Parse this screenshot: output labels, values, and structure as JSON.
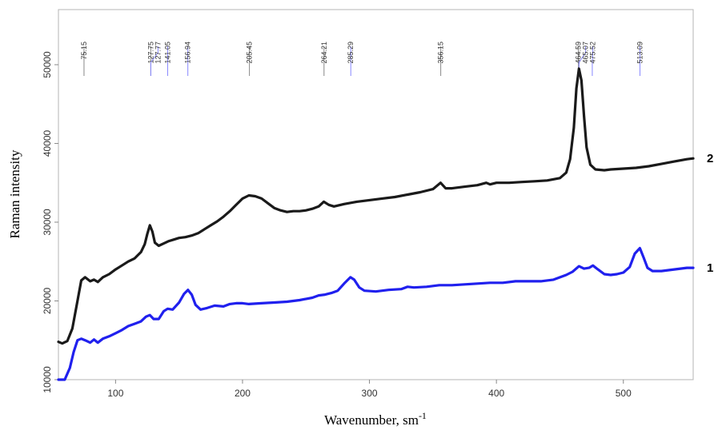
{
  "chart_data": {
    "type": "line",
    "title": "",
    "xlabel": "Wavenumber, sm",
    "xlabel_superscript": "-1",
    "ylabel": "Raman intensity",
    "xlim": [
      55,
      555
    ],
    "ylim": [
      10000,
      57000
    ],
    "xticks": [
      100,
      200,
      300,
      400,
      500
    ],
    "yticks": [
      10000,
      20000,
      30000,
      40000,
      50000
    ],
    "grid": false,
    "peak_annotations": [
      {
        "label": "75.15",
        "x": 75.15,
        "color": "#888888"
      },
      {
        "label": "127.75",
        "x": 127.75,
        "color": "#888888"
      },
      {
        "label": "127.77",
        "x": 127.77,
        "color": "#8888ff"
      },
      {
        "label": "141.05",
        "x": 141.05,
        "color": "#8888ff"
      },
      {
        "label": "156.94",
        "x": 156.94,
        "color": "#8888ff"
      },
      {
        "label": "205.45",
        "x": 205.45,
        "color": "#888888"
      },
      {
        "label": "264.21",
        "x": 264.21,
        "color": "#888888"
      },
      {
        "label": "285.29",
        "x": 285.29,
        "color": "#8888ff"
      },
      {
        "label": "356.15",
        "x": 356.15,
        "color": "#888888"
      },
      {
        "label": "464.59",
        "x": 464.59,
        "color": "#888888"
      },
      {
        "label": "465.07",
        "x": 465.07,
        "color": "#8888ff"
      },
      {
        "label": "475.52",
        "x": 475.52,
        "color": "#8888ff"
      },
      {
        "label": "513.09",
        "x": 513.09,
        "color": "#8888ff"
      }
    ],
    "series": [
      {
        "label": "2",
        "color": "#1a1a1a",
        "points": [
          [
            55,
            14800
          ],
          [
            58,
            14600
          ],
          [
            62,
            14900
          ],
          [
            66,
            16500
          ],
          [
            70,
            20000
          ],
          [
            73,
            22600
          ],
          [
            76,
            23000
          ],
          [
            80,
            22500
          ],
          [
            83,
            22700
          ],
          [
            86,
            22400
          ],
          [
            90,
            23000
          ],
          [
            95,
            23400
          ],
          [
            100,
            24000
          ],
          [
            105,
            24500
          ],
          [
            110,
            25000
          ],
          [
            115,
            25400
          ],
          [
            120,
            26200
          ],
          [
            123,
            27200
          ],
          [
            125,
            28500
          ],
          [
            127,
            29600
          ],
          [
            129,
            28800
          ],
          [
            131,
            27400
          ],
          [
            134,
            27000
          ],
          [
            138,
            27300
          ],
          [
            142,
            27600
          ],
          [
            146,
            27800
          ],
          [
            150,
            28000
          ],
          [
            155,
            28100
          ],
          [
            160,
            28300
          ],
          [
            165,
            28600
          ],
          [
            170,
            29100
          ],
          [
            175,
            29600
          ],
          [
            180,
            30100
          ],
          [
            185,
            30700
          ],
          [
            190,
            31400
          ],
          [
            195,
            32200
          ],
          [
            200,
            33000
          ],
          [
            205,
            33400
          ],
          [
            210,
            33300
          ],
          [
            215,
            33000
          ],
          [
            220,
            32400
          ],
          [
            225,
            31800
          ],
          [
            230,
            31500
          ],
          [
            235,
            31300
          ],
          [
            240,
            31400
          ],
          [
            245,
            31400
          ],
          [
            250,
            31500
          ],
          [
            255,
            31700
          ],
          [
            260,
            32000
          ],
          [
            264,
            32600
          ],
          [
            268,
            32200
          ],
          [
            272,
            32000
          ],
          [
            280,
            32300
          ],
          [
            290,
            32600
          ],
          [
            300,
            32800
          ],
          [
            310,
            33000
          ],
          [
            320,
            33200
          ],
          [
            330,
            33500
          ],
          [
            340,
            33800
          ],
          [
            350,
            34200
          ],
          [
            356,
            35000
          ],
          [
            360,
            34300
          ],
          [
            365,
            34300
          ],
          [
            375,
            34500
          ],
          [
            385,
            34700
          ],
          [
            392,
            35000
          ],
          [
            395,
            34800
          ],
          [
            400,
            35000
          ],
          [
            410,
            35000
          ],
          [
            420,
            35100
          ],
          [
            430,
            35200
          ],
          [
            440,
            35300
          ],
          [
            450,
            35600
          ],
          [
            455,
            36300
          ],
          [
            458,
            38000
          ],
          [
            461,
            42000
          ],
          [
            463,
            47000
          ],
          [
            465,
            49500
          ],
          [
            467,
            48000
          ],
          [
            469,
            43500
          ],
          [
            471,
            39500
          ],
          [
            474,
            37300
          ],
          [
            478,
            36700
          ],
          [
            485,
            36600
          ],
          [
            490,
            36700
          ],
          [
            500,
            36800
          ],
          [
            510,
            36900
          ],
          [
            520,
            37100
          ],
          [
            530,
            37400
          ],
          [
            540,
            37700
          ],
          [
            550,
            38000
          ],
          [
            555,
            38100
          ]
        ]
      },
      {
        "label": "1",
        "color": "#2020ee",
        "points": [
          [
            55,
            10000
          ],
          [
            60,
            10000
          ],
          [
            64,
            11500
          ],
          [
            67,
            13500
          ],
          [
            70,
            15000
          ],
          [
            73,
            15200
          ],
          [
            76,
            15000
          ],
          [
            80,
            14700
          ],
          [
            83,
            15100
          ],
          [
            86,
            14700
          ],
          [
            90,
            15200
          ],
          [
            95,
            15500
          ],
          [
            100,
            15900
          ],
          [
            105,
            16300
          ],
          [
            110,
            16800
          ],
          [
            115,
            17100
          ],
          [
            120,
            17400
          ],
          [
            124,
            18000
          ],
          [
            127,
            18200
          ],
          [
            130,
            17700
          ],
          [
            134,
            17700
          ],
          [
            138,
            18700
          ],
          [
            141,
            19000
          ],
          [
            145,
            18900
          ],
          [
            150,
            19800
          ],
          [
            154,
            20900
          ],
          [
            157,
            21400
          ],
          [
            160,
            20800
          ],
          [
            163,
            19500
          ],
          [
            167,
            18900
          ],
          [
            172,
            19100
          ],
          [
            178,
            19400
          ],
          [
            185,
            19300
          ],
          [
            190,
            19600
          ],
          [
            195,
            19700
          ],
          [
            200,
            19700
          ],
          [
            205,
            19600
          ],
          [
            215,
            19700
          ],
          [
            225,
            19800
          ],
          [
            235,
            19900
          ],
          [
            245,
            20100
          ],
          [
            255,
            20400
          ],
          [
            260,
            20700
          ],
          [
            265,
            20800
          ],
          [
            270,
            21000
          ],
          [
            275,
            21300
          ],
          [
            280,
            22200
          ],
          [
            285,
            23000
          ],
          [
            288,
            22700
          ],
          [
            292,
            21700
          ],
          [
            296,
            21300
          ],
          [
            305,
            21200
          ],
          [
            315,
            21400
          ],
          [
            325,
            21500
          ],
          [
            330,
            21800
          ],
          [
            335,
            21700
          ],
          [
            345,
            21800
          ],
          [
            355,
            22000
          ],
          [
            365,
            22000
          ],
          [
            375,
            22100
          ],
          [
            385,
            22200
          ],
          [
            395,
            22300
          ],
          [
            405,
            22300
          ],
          [
            415,
            22500
          ],
          [
            425,
            22500
          ],
          [
            435,
            22500
          ],
          [
            445,
            22700
          ],
          [
            455,
            23300
          ],
          [
            460,
            23700
          ],
          [
            465,
            24400
          ],
          [
            469,
            24100
          ],
          [
            473,
            24200
          ],
          [
            476,
            24500
          ],
          [
            480,
            24000
          ],
          [
            485,
            23400
          ],
          [
            490,
            23300
          ],
          [
            495,
            23400
          ],
          [
            500,
            23600
          ],
          [
            505,
            24300
          ],
          [
            509,
            26000
          ],
          [
            513,
            26700
          ],
          [
            516,
            25500
          ],
          [
            519,
            24200
          ],
          [
            523,
            23800
          ],
          [
            530,
            23800
          ],
          [
            540,
            24000
          ],
          [
            550,
            24200
          ],
          [
            555,
            24200
          ]
        ]
      }
    ]
  }
}
